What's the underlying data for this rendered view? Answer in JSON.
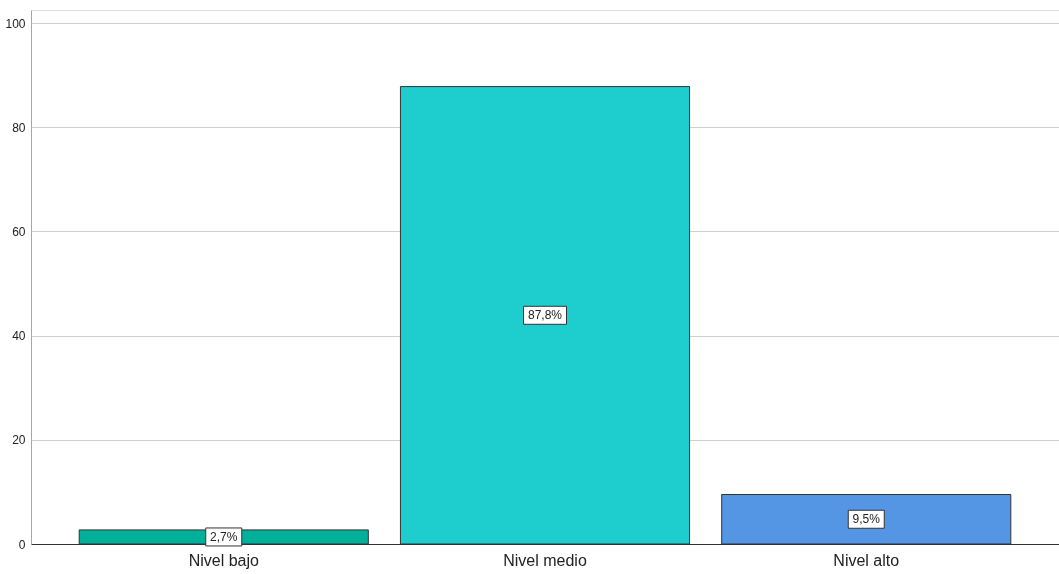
{
  "chart_data": {
    "type": "bar",
    "categories": [
      "Nivel bajo",
      "Nivel medio",
      "Nivel alto"
    ],
    "values": [
      2.7,
      87.8,
      9.5
    ],
    "colors": [
      "#00b09b",
      "#1ecdcd",
      "#5596e4"
    ],
    "value_labels": [
      "2,7%",
      "87,8%",
      "9,5%"
    ],
    "ylim": [
      0,
      102.5
    ],
    "yticks": [
      0,
      20,
      40,
      60,
      80,
      100
    ],
    "grid": "y"
  }
}
